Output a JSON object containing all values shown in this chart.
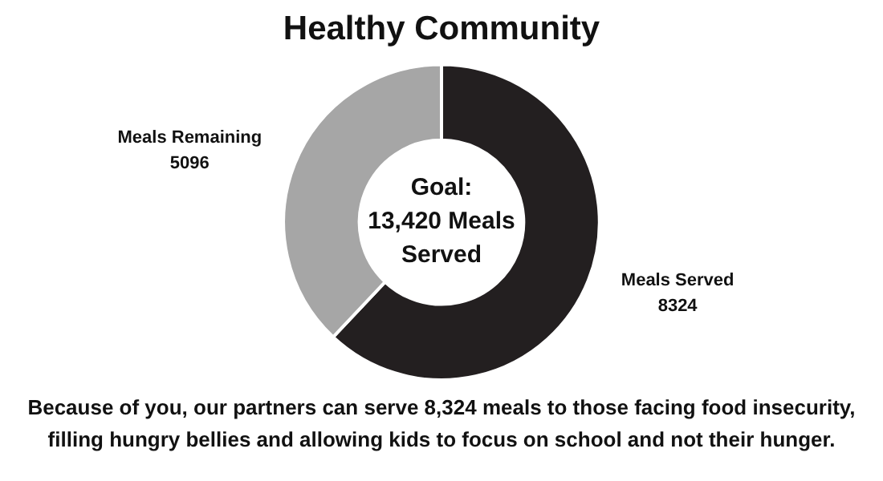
{
  "chart_data": {
    "type": "donut",
    "title": "Healthy Community",
    "categories": [
      "Meals Served",
      "Meals Remaining"
    ],
    "values": [
      8324,
      5096
    ],
    "colors": [
      "#231f20",
      "#a6a6a6"
    ],
    "data_labels": true,
    "legend": false,
    "annotations": [
      "Goal:\n13,420 Meals\nServed",
      "Because of you, our partners can serve 8,324 meals to those facing food insecurity, filling hungry bellies and allowing kids to focus on school and not their hunger."
    ]
  }
}
